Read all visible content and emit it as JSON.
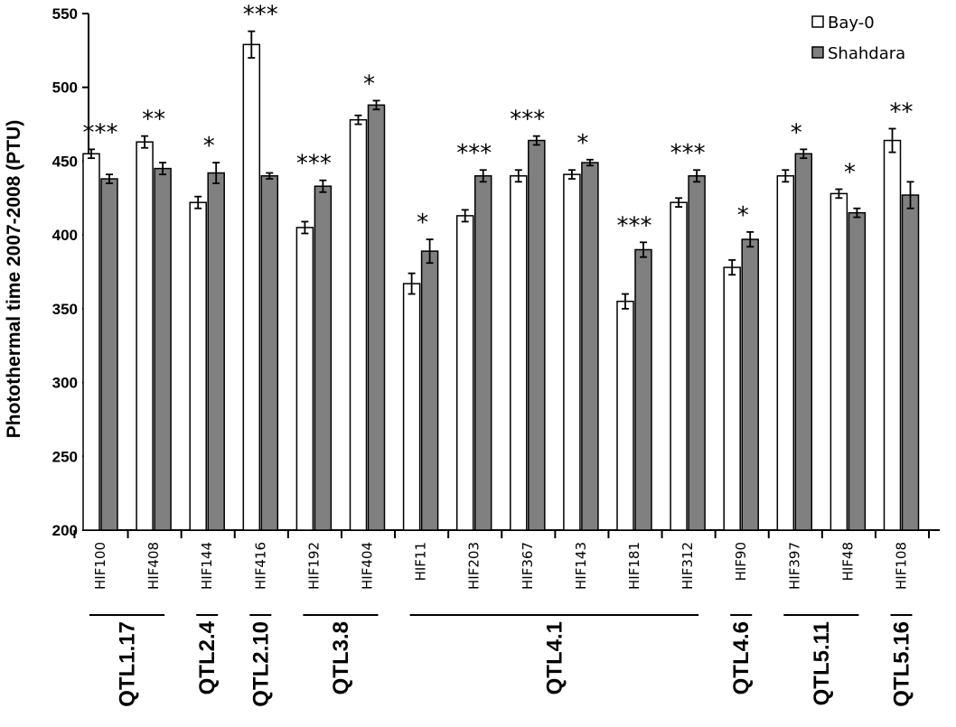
{
  "chart_data": {
    "type": "bar",
    "title": "",
    "xlabel": "",
    "ylabel": "Photothermal time 2007-2008 (PTU)",
    "ylim": [
      200,
      550
    ],
    "yticks": [
      200,
      250,
      300,
      350,
      400,
      450,
      500,
      550
    ],
    "grid": false,
    "legend_position": "top-right",
    "error_bars": true,
    "categories": [
      "HIF100",
      "HIF408",
      "HIF144",
      "HIF416",
      "HIF192",
      "HIF404",
      "HIF11",
      "HIF203",
      "HIF367",
      "HIF143",
      "HIF181",
      "HIF312",
      "HIF90",
      "HIF397",
      "HIF48",
      "HIF108"
    ],
    "series": [
      {
        "name": "Bay-0",
        "color": "#ffffff",
        "values": [
          455,
          463,
          422,
          529,
          405,
          478,
          367,
          413,
          440,
          441,
          355,
          422,
          378,
          440,
          428,
          464
        ],
        "errors": [
          3,
          4,
          4,
          9,
          4,
          3,
          7,
          4,
          4,
          3,
          5,
          3,
          5,
          4,
          3,
          8
        ]
      },
      {
        "name": "Shahdara",
        "color": "#808080",
        "values": [
          438,
          445,
          442,
          440,
          433,
          488,
          389,
          440,
          464,
          449,
          390,
          440,
          397,
          455,
          415,
          427
        ],
        "errors": [
          3,
          4,
          7,
          2,
          4,
          3,
          8,
          4,
          3,
          2,
          5,
          4,
          5,
          3,
          3,
          9
        ]
      }
    ],
    "significance": [
      "***",
      "**",
      "*",
      "***",
      "***",
      "*",
      "*",
      "***",
      "***",
      "*",
      "***",
      "***",
      "*",
      "*",
      "*",
      "**"
    ],
    "groups": [
      {
        "label": "QTL1.17",
        "start": 0,
        "end": 1
      },
      {
        "label": "QTL2.4",
        "start": 2,
        "end": 2
      },
      {
        "label": "QTL2.10",
        "start": 3,
        "end": 3
      },
      {
        "label": "QTL3.8",
        "start": 4,
        "end": 5
      },
      {
        "label": "QTL4.1",
        "start": 6,
        "end": 11
      },
      {
        "label": "QTL4.6",
        "start": 12,
        "end": 12
      },
      {
        "label": "QTL5.11",
        "start": 13,
        "end": 14
      },
      {
        "label": "QTL5.16",
        "start": 15,
        "end": 15
      }
    ]
  }
}
